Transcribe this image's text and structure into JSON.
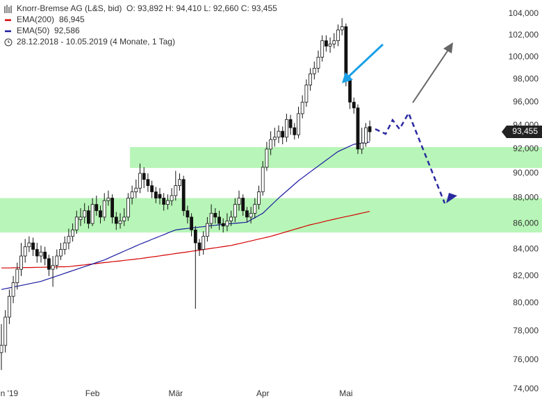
{
  "chart_data": {
    "type": "candlestick",
    "title": "Knorr-Bremse AG (L&S, bid)",
    "ohlc_text": "O: 93,892   H: 94,410   L: 92,660   C: 93,455",
    "subtitle": "28.12.2018 - 10.05.2019   (4 Monate, 1 Tag)",
    "categories": [
      null,
      null,
      "n '19",
      null,
      null,
      null,
      null,
      null,
      null,
      null,
      null,
      null,
      null,
      null,
      null,
      null,
      null,
      null,
      null,
      null,
      null,
      null,
      null,
      "Feb",
      null,
      null,
      null,
      null,
      null,
      null,
      null,
      null,
      null,
      null,
      null,
      null,
      null,
      null,
      null,
      null,
      null,
      null,
      null,
      null,
      "Mär",
      null,
      null,
      null,
      null,
      null,
      null,
      null,
      null,
      null,
      null,
      null,
      null,
      null,
      null,
      null,
      null,
      null,
      null,
      null,
      null,
      null,
      "Apr",
      null,
      null,
      null,
      null,
      null,
      null,
      null,
      null,
      null,
      null,
      null,
      null,
      null,
      null,
      null,
      null,
      null,
      null,
      null,
      null,
      "Mai",
      null,
      null,
      null,
      null,
      null,
      null
    ],
    "open": [
      76.5,
      77,
      79,
      80.5,
      81.5,
      82.5,
      83.5,
      84.2,
      84.5,
      84,
      83.5,
      83.8,
      83.3,
      82.5,
      82.8,
      83.5,
      84,
      84.5,
      85,
      85.5,
      86.3,
      86.5,
      87,
      86,
      87.5,
      87,
      86.5,
      87.8,
      88,
      86.5,
      86,
      86.2,
      86.5,
      88,
      88.5,
      88.8,
      90,
      89.5,
      89,
      88.5,
      88.3,
      88,
      87.5,
      87.8,
      88.2,
      89,
      89.5,
      87,
      86.5,
      85.5,
      84.5,
      84,
      85,
      86,
      86.8,
      86.5,
      86,
      85.8,
      86.2,
      86.5,
      87.5,
      88,
      87,
      86.5,
      86.8,
      87.5,
      88.5,
      90.5,
      92,
      92.8,
      93,
      93.5,
      93,
      94.5,
      93.8,
      93.2,
      95,
      96,
      97.5,
      98.5,
      99,
      100,
      101.5,
      101,
      101.2,
      101.5,
      102.5,
      102.8,
      98,
      96,
      95.5,
      92,
      92.5,
      93.892
    ],
    "high": [
      78.5,
      79.5,
      81,
      82,
      83,
      84.5,
      84.8,
      85,
      84.9,
      84.5,
      84.3,
      84.2,
      83.6,
      83.5,
      84,
      84.5,
      85,
      85.6,
      86,
      87,
      87.2,
      87.6,
      87.4,
      88,
      88.2,
      87.4,
      88.4,
      88.6,
      88.3,
      86.9,
      86.8,
      87.2,
      88.4,
      89,
      89.5,
      90.8,
      90.5,
      90,
      89.4,
      88.9,
      88.8,
      88.4,
      88.3,
      88.8,
      90.2,
      90,
      89.8,
      87.4,
      86.8,
      85.8,
      84.8,
      85.4,
      86.5,
      87.5,
      87.2,
      87,
      86.4,
      86.8,
      87,
      88,
      88.6,
      88.3,
      87.3,
      87.3,
      88,
      89,
      91,
      92.6,
      93.5,
      93.8,
      94,
      93.9,
      95,
      94.9,
      94.2,
      95.6,
      96.6,
      98,
      99,
      99.6,
      100.6,
      102,
      102,
      101.8,
      102.2,
      103,
      103.6,
      103.1,
      98.4,
      96.4,
      95.8,
      93.8,
      94.2,
      94.41
    ],
    "low": [
      75.3,
      76.5,
      78.5,
      80,
      81,
      82,
      83,
      83.8,
      83.5,
      83,
      83,
      82.8,
      82,
      81.2,
      82.5,
      83.2,
      83.6,
      84,
      84.6,
      85.2,
      85.8,
      86,
      85.6,
      85.8,
      86.6,
      86,
      86.2,
      87.4,
      86,
      85.5,
      85.6,
      85.8,
      86.2,
      87.5,
      88,
      88.4,
      88.8,
      88.5,
      88,
      87.6,
      87.5,
      87,
      87.1,
      87.4,
      87.8,
      88.6,
      86.6,
      86,
      85,
      79.6,
      83.5,
      83.6,
      84.6,
      85.6,
      86,
      85.5,
      85.3,
      85.4,
      85.8,
      86.1,
      87,
      86.6,
      86.1,
      86,
      86.4,
      87.1,
      88.2,
      90.2,
      91.5,
      92.2,
      92.5,
      92.4,
      92.6,
      93.2,
      92.8,
      92.9,
      94.6,
      95.6,
      97,
      98,
      98.6,
      99.6,
      100.5,
      100.4,
      100.8,
      101,
      102,
      97.4,
      95.4,
      95,
      91.6,
      91.6,
      92.2,
      92.66
    ],
    "close": [
      77,
      79,
      80.5,
      81.5,
      82.5,
      83.5,
      84.2,
      84.5,
      84,
      83.5,
      83.8,
      83.3,
      82.5,
      82.8,
      83.5,
      84,
      84.5,
      85,
      85.5,
      86.5,
      86.5,
      87,
      86,
      87.5,
      87,
      86.5,
      87.8,
      88,
      86.5,
      86,
      86.2,
      86.5,
      88,
      88.5,
      88.8,
      90,
      89.5,
      89,
      88.5,
      88,
      88,
      87.5,
      87.8,
      88.2,
      89,
      89.5,
      87,
      86.5,
      85.5,
      84.5,
      84,
      85,
      86,
      86.8,
      86.5,
      86,
      85.8,
      86.2,
      86.5,
      87.5,
      88,
      87,
      86.5,
      86.8,
      87.5,
      88.5,
      90.5,
      92,
      92.8,
      93,
      93.5,
      93,
      94.5,
      93.8,
      93.2,
      95,
      96,
      97.5,
      98.5,
      99,
      100,
      101.5,
      101,
      101.2,
      101.5,
      102.5,
      102.8,
      98,
      96,
      95.5,
      92,
      92.5,
      93.8,
      93.455
    ],
    "series": [
      {
        "name": "EMA(200)",
        "color": "#d40000",
        "last_label": "86,945",
        "values": [
          82.6,
          82.6,
          82.6,
          82.61,
          82.62,
          82.62,
          82.63,
          82.63,
          82.64,
          82.65,
          82.65,
          82.66,
          82.67,
          82.67,
          82.68,
          82.69,
          82.69,
          82.7,
          82.73,
          82.77,
          82.8,
          82.83,
          82.87,
          82.9,
          82.93,
          82.97,
          83.0,
          83.03,
          83.07,
          83.1,
          83.13,
          83.17,
          83.2,
          83.23,
          83.27,
          83.3,
          83.34,
          83.39,
          83.43,
          83.47,
          83.51,
          83.56,
          83.6,
          83.64,
          83.69,
          83.73,
          83.77,
          83.81,
          83.86,
          83.9,
          83.94,
          83.99,
          84.03,
          84.08,
          84.12,
          84.17,
          84.21,
          84.26,
          84.3,
          84.37,
          84.44,
          84.51,
          84.58,
          84.65,
          84.72,
          84.79,
          84.86,
          84.93,
          85.0,
          85.09,
          85.18,
          85.27,
          85.36,
          85.45,
          85.54,
          85.63,
          85.72,
          85.81,
          85.9,
          85.97,
          86.04,
          86.11,
          86.19,
          86.26,
          86.33,
          86.4,
          86.47,
          86.54,
          86.6,
          86.67,
          86.74,
          86.81,
          86.88,
          86.945
        ]
      },
      {
        "name": "EMA(50)",
        "color": "#1a1aa0",
        "last_label": "92,586",
        "values": [
          81.0,
          81.06,
          81.12,
          81.18,
          81.24,
          81.3,
          81.36,
          81.42,
          81.48,
          81.54,
          81.6,
          81.7,
          81.8,
          81.9,
          82.0,
          82.1,
          82.2,
          82.3,
          82.4,
          82.5,
          82.6,
          82.7,
          82.8,
          82.9,
          83.0,
          83.1,
          83.2,
          83.33,
          83.47,
          83.6,
          83.73,
          83.87,
          84.0,
          84.13,
          84.27,
          84.4,
          84.52,
          84.64,
          84.77,
          84.89,
          85.01,
          85.13,
          85.26,
          85.38,
          85.5,
          85.54,
          85.58,
          85.61,
          85.65,
          85.68,
          85.72,
          85.75,
          85.79,
          85.83,
          85.86,
          85.9,
          85.93,
          85.96,
          85.99,
          86.01,
          86.04,
          86.07,
          86.1,
          86.28,
          86.45,
          86.63,
          86.8,
          87.1,
          87.4,
          87.7,
          88.0,
          88.28,
          88.56,
          88.84,
          89.12,
          89.4,
          89.64,
          89.88,
          90.12,
          90.36,
          90.6,
          90.84,
          91.08,
          91.32,
          91.56,
          91.8,
          91.95,
          92.1,
          92.25,
          92.4,
          92.45,
          92.5,
          92.54,
          92.586
        ]
      }
    ],
    "current_price": {
      "value": 93.455,
      "label": "93,455"
    },
    "zones": [
      {
        "low": 90.44,
        "high": 92.17,
        "start_index": 33,
        "color": "#b8f5b8"
      },
      {
        "low": 85.3,
        "high": 88.0,
        "start_index": 0,
        "color": "#b8f5b8"
      }
    ],
    "ylim": [
      74,
      104
    ],
    "log_scale": true,
    "grid": false,
    "yticks": [
      {
        "value": 74,
        "label": "74,000"
      },
      {
        "value": 76,
        "label": "76,000"
      },
      {
        "value": 78,
        "label": "78,000"
      },
      {
        "value": 80,
        "label": "80,000"
      },
      {
        "value": 82,
        "label": "82,000"
      },
      {
        "value": 84,
        "label": "84,000"
      },
      {
        "value": 86,
        "label": "86,000"
      },
      {
        "value": 88,
        "label": "88,000"
      },
      {
        "value": 90,
        "label": "90,000"
      },
      {
        "value": 92,
        "label": "92,000"
      },
      {
        "value": 94,
        "label": "94,000"
      },
      {
        "value": 96,
        "label": "96,000"
      },
      {
        "value": 98,
        "label": "98,000"
      },
      {
        "value": 100,
        "label": "100,000"
      },
      {
        "value": 102,
        "label": "102,000"
      },
      {
        "value": 104,
        "label": "104,000"
      }
    ]
  }
}
